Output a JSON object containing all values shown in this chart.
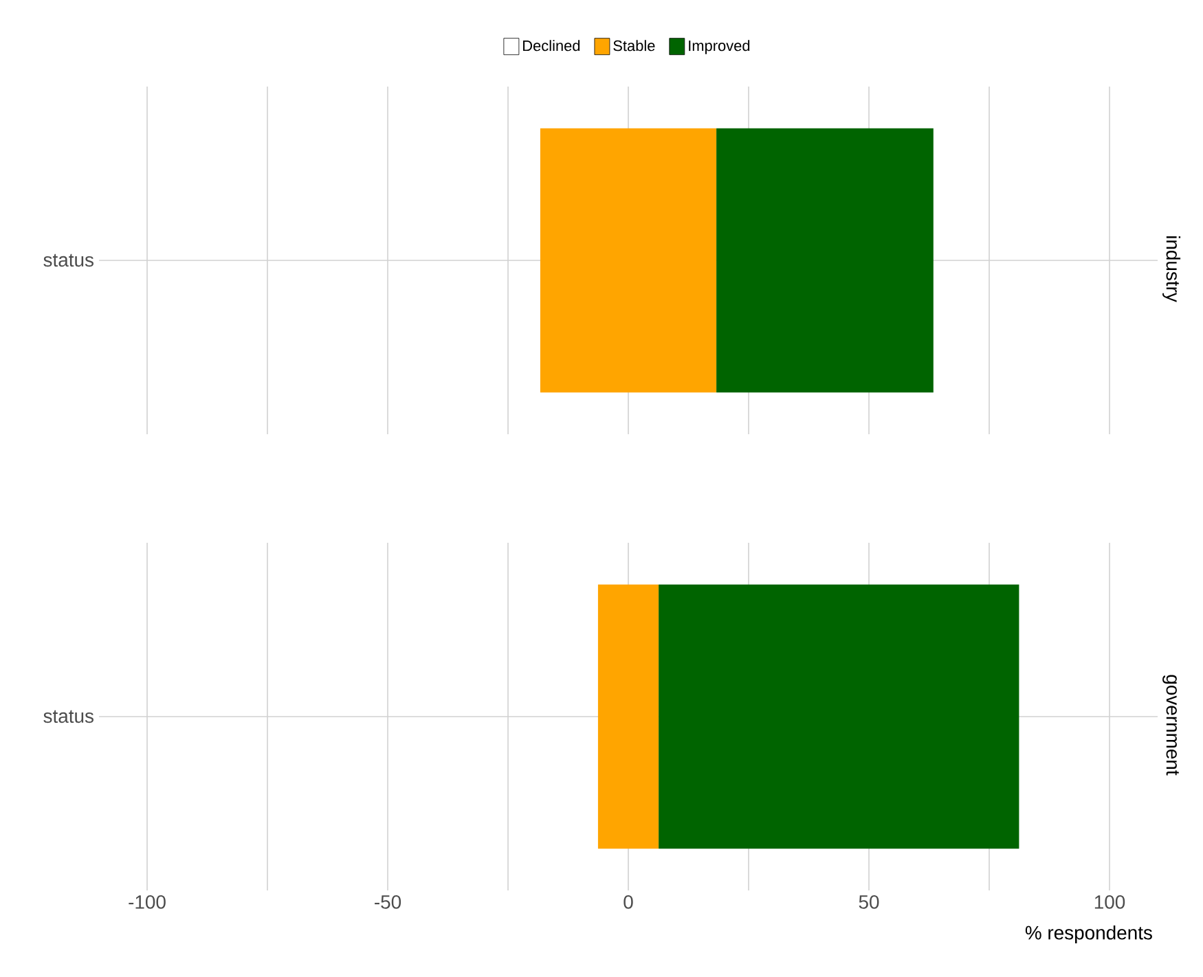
{
  "chart_data": [
    {
      "type": "bar",
      "orientation": "horizontal",
      "title": "industry",
      "categories": [
        "status"
      ],
      "series": [
        {
          "name": "Declined",
          "color": "#ffffff",
          "values": [
            0
          ]
        },
        {
          "name": "Stable",
          "color": "#ffa500",
          "base": [
            -18.3
          ],
          "values": [
            36.6
          ]
        },
        {
          "name": "Improved",
          "color": "#006400",
          "base": [
            18.3
          ],
          "values": [
            45.1
          ]
        }
      ],
      "xlim": [
        -110,
        110
      ],
      "xticks": [
        -100,
        {
          "value": -75,
          "label": null
        },
        -50,
        {
          "value": -25,
          "label": null
        },
        0,
        {
          "value": 25,
          "label": null
        },
        50,
        {
          "value": 75,
          "label": null
        },
        100
      ],
      "grid": true,
      "legend": "top",
      "tick_labels": "y"
    },
    {
      "type": "bar",
      "orientation": "horizontal",
      "title": "government",
      "xlabel": "% respondents",
      "categories": [
        "status"
      ],
      "series": [
        {
          "color": "#ffa500",
          "base": [
            -6.3
          ],
          "values": [
            12.6
          ]
        },
        {
          "color": "#006400",
          "base": [
            6.3
          ],
          "values": [
            74.9
          ]
        }
      ],
      "xlim": [
        -110,
        110
      ],
      "xticks": [
        -100,
        {
          "value": -75,
          "label": null
        },
        -50,
        {
          "value": -25,
          "label": null
        },
        0,
        {
          "value": 25,
          "label": null
        },
        50,
        {
          "value": 75,
          "label": null
        },
        100
      ],
      "grid": true
    }
  ]
}
